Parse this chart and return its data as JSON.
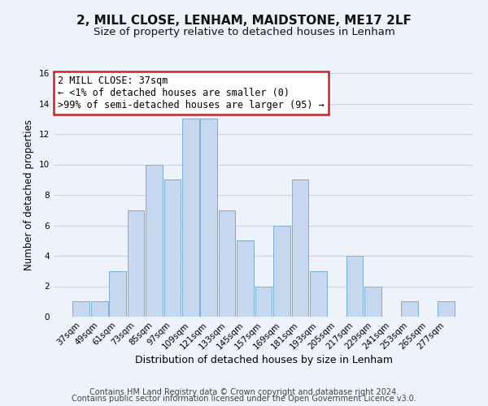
{
  "title": "2, MILL CLOSE, LENHAM, MAIDSTONE, ME17 2LF",
  "subtitle": "Size of property relative to detached houses in Lenham",
  "xlabel": "Distribution of detached houses by size in Lenham",
  "ylabel": "Number of detached properties",
  "bar_labels": [
    "37sqm",
    "49sqm",
    "61sqm",
    "73sqm",
    "85sqm",
    "97sqm",
    "109sqm",
    "121sqm",
    "133sqm",
    "145sqm",
    "157sqm",
    "169sqm",
    "181sqm",
    "193sqm",
    "205sqm",
    "217sqm",
    "229sqm",
    "241sqm",
    "253sqm",
    "265sqm",
    "277sqm"
  ],
  "bar_values": [
    1,
    1,
    3,
    7,
    10,
    9,
    13,
    13,
    7,
    5,
    2,
    6,
    9,
    3,
    0,
    4,
    2,
    0,
    1,
    0,
    1
  ],
  "bar_color": "#c5d8f0",
  "bar_edge_color": "#7aaed6",
  "annotation_title": "2 MILL CLOSE: 37sqm",
  "annotation_line1": "← <1% of detached houses are smaller (0)",
  "annotation_line2": ">99% of semi-detached houses are larger (95) →",
  "annotation_box_color": "#ffffff",
  "annotation_box_edge": "#cc2222",
  "ylim": [
    0,
    16
  ],
  "yticks": [
    0,
    2,
    4,
    6,
    8,
    10,
    12,
    14,
    16
  ],
  "footer1": "Contains HM Land Registry data © Crown copyright and database right 2024.",
  "footer2": "Contains public sector information licensed under the Open Government Licence v3.0.",
  "title_fontsize": 11,
  "subtitle_fontsize": 9.5,
  "xlabel_fontsize": 9,
  "ylabel_fontsize": 8.5,
  "tick_fontsize": 7.5,
  "footer_fontsize": 7,
  "annotation_fontsize": 8.5,
  "grid_color": "#c8d4e8",
  "background_color": "#eef2fa"
}
